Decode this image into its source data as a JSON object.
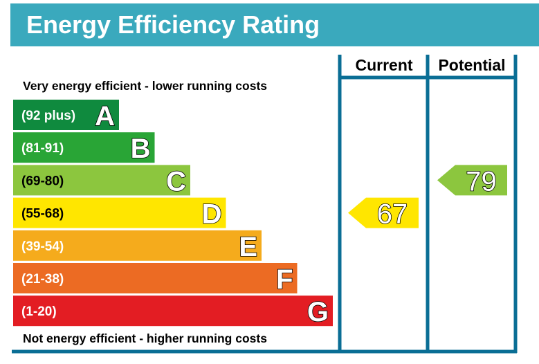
{
  "title": "Energy Efficiency Rating",
  "top_note": "Very energy efficient - lower running costs",
  "bottom_note": "Not energy efficient - higher running costs",
  "columns": {
    "current": "Current",
    "potential": "Potential"
  },
  "colors": {
    "title_bar": "#3aa9bd",
    "frame": "#0a6e95",
    "A": "#0f8a3e",
    "B": "#29a536",
    "C": "#8cc63e",
    "D": "#ffe600",
    "E": "#f5ab1c",
    "F": "#ec6b23",
    "G": "#e31d23"
  },
  "chart_data": {
    "type": "bar",
    "bands": [
      {
        "letter": "A",
        "range": "(92 plus)"
      },
      {
        "letter": "B",
        "range": "(81-91)"
      },
      {
        "letter": "C",
        "range": "(69-80)"
      },
      {
        "letter": "D",
        "range": "(55-68)"
      },
      {
        "letter": "E",
        "range": "(39-54)"
      },
      {
        "letter": "F",
        "range": "(21-38)"
      },
      {
        "letter": "G",
        "range": "(1-20)"
      }
    ],
    "current": {
      "value": 67,
      "band": "D"
    },
    "potential": {
      "value": 79,
      "band": "C"
    }
  }
}
